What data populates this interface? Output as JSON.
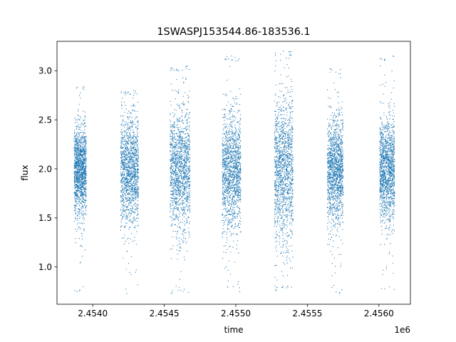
{
  "chart_data": {
    "type": "scatter",
    "title": "1SWASPJ153544.86-183536.1",
    "xlabel": "time",
    "ylabel": "flux",
    "x_offset_label": "1e6",
    "xlim": [
      2453750,
      2456220
    ],
    "ylim": [
      0.62,
      3.3
    ],
    "grid": false,
    "legend": "none",
    "x_ticks": [
      {
        "value": 2454000,
        "label": "2.4540"
      },
      {
        "value": 2454500,
        "label": "2.4545"
      },
      {
        "value": 2455000,
        "label": "2.4550"
      },
      {
        "value": 2455500,
        "label": "2.4555"
      },
      {
        "value": 2456000,
        "label": "2.4560"
      }
    ],
    "y_ticks": [
      {
        "value": 1.0,
        "label": "1.0"
      },
      {
        "value": 1.5,
        "label": "1.5"
      },
      {
        "value": 2.0,
        "label": "2.0"
      },
      {
        "value": 2.5,
        "label": "2.5"
      },
      {
        "value": 3.0,
        "label": "3.0"
      }
    ],
    "series": [
      {
        "color": "#1f77b4",
        "marker_size": 0.6,
        "observing_seasons": [
          {
            "x_start": 2453870,
            "x_end": 2453955,
            "median": 1.98,
            "core_low": 1.65,
            "core_high": 2.3,
            "min": 0.75,
            "max": 2.84
          },
          {
            "x_start": 2454195,
            "x_end": 2454320,
            "median": 1.98,
            "core_low": 1.6,
            "core_high": 2.45,
            "min": 0.73,
            "max": 2.8
          },
          {
            "x_start": 2454540,
            "x_end": 2454680,
            "median": 1.98,
            "core_low": 1.6,
            "core_high": 2.55,
            "min": 0.73,
            "max": 3.05
          },
          {
            "x_start": 2454905,
            "x_end": 2455035,
            "median": 1.98,
            "core_low": 1.55,
            "core_high": 2.5,
            "min": 0.75,
            "max": 3.15
          },
          {
            "x_start": 2455270,
            "x_end": 2455400,
            "median": 1.98,
            "core_low": 1.45,
            "core_high": 2.6,
            "min": 0.76,
            "max": 3.2
          },
          {
            "x_start": 2455640,
            "x_end": 2455750,
            "median": 1.98,
            "core_low": 1.6,
            "core_high": 2.4,
            "min": 0.73,
            "max": 3.02
          },
          {
            "x_start": 2456005,
            "x_end": 2456110,
            "median": 1.98,
            "core_low": 1.6,
            "core_high": 2.4,
            "min": 0.77,
            "max": 3.15
          }
        ]
      }
    ]
  }
}
